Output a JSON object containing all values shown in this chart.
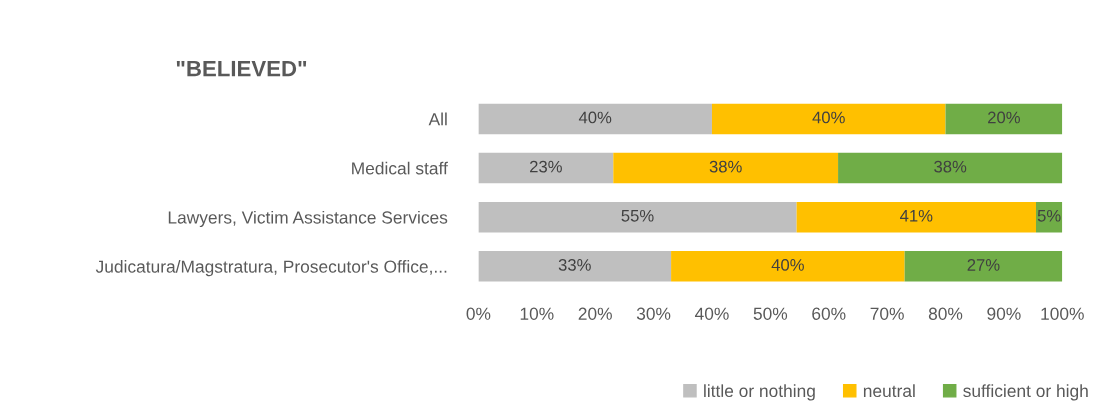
{
  "chart_data": {
    "type": "bar",
    "orientation": "horizontal",
    "stacked": true,
    "title": "\"BELIEVED\"",
    "categories": [
      "All",
      "Medical staff",
      "Lawyers, Victim Assistance Services",
      "Judicatura/Magstratura, Prosecutor's Office,..."
    ],
    "series": [
      {
        "name": "little or nothing",
        "color": "#bfbfbf",
        "values": [
          40,
          23.1,
          54.5,
          33
        ],
        "value_labels": [
          "40%",
          "23%",
          "55%",
          "33%"
        ]
      },
      {
        "name": "neutral",
        "color": "#ffc000",
        "values": [
          40,
          38.5,
          41,
          40
        ],
        "value_labels": [
          "40%",
          "38%",
          "41%",
          "40%"
        ]
      },
      {
        "name": "sufficient or high",
        "color": "#70ad47",
        "values": [
          20,
          38.4,
          4.5,
          27
        ],
        "value_labels": [
          "20%",
          "38%",
          "5%",
          "27%"
        ]
      }
    ],
    "xlim": [
      0,
      100
    ],
    "xticks": [
      {
        "value": 0,
        "label": "0%"
      },
      {
        "value": 10,
        "label": "10%"
      },
      {
        "value": 20,
        "label": "20%"
      },
      {
        "value": 30,
        "label": "30%"
      },
      {
        "value": 40,
        "label": "40%"
      },
      {
        "value": 50,
        "label": "50%"
      },
      {
        "value": 60,
        "label": "60%"
      },
      {
        "value": 70,
        "label": "70%"
      },
      {
        "value": 80,
        "label": "80%"
      },
      {
        "value": 90,
        "label": "90%"
      },
      {
        "value": 100,
        "label": "100%"
      }
    ],
    "grid": false,
    "legend": "bottom right"
  }
}
